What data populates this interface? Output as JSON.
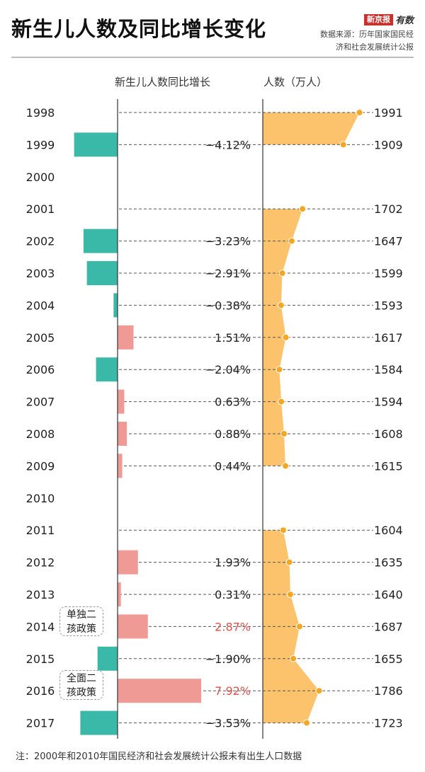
{
  "title": "新生儿人数及同比增长变化",
  "brand": {
    "box": "新京报",
    "text": "有数"
  },
  "source": {
    "line1": "数据来源：历年国家国民经",
    "line2": "济和社会发展统计公报"
  },
  "headers": {
    "growth": "新生儿人数同比增长",
    "count": "人数（万人）"
  },
  "annotations": [
    {
      "year": "2014",
      "line1": "单独二",
      "line2": "孩政策"
    },
    {
      "year": "2016",
      "line1": "全面二",
      "line2": "孩政策"
    }
  ],
  "footnote": "注：2000年和2010年国民经济和社会发展统计公报未有出生人口数据",
  "colors": {
    "negative": "#3ab8a8",
    "positive": "#ef9a94",
    "births": "#fcc36c",
    "births_point": "#f5a623",
    "highlight": "#d9534f"
  },
  "chart_data": [
    {
      "type": "bar",
      "name": "新生儿人数同比增长",
      "orientation": "horizontal",
      "unit": "%",
      "categories": [
        "1998",
        "1999",
        "2000",
        "2001",
        "2002",
        "2003",
        "2004",
        "2005",
        "2006",
        "2007",
        "2008",
        "2009",
        "2010",
        "2011",
        "2012",
        "2013",
        "2014",
        "2015",
        "2016",
        "2017"
      ],
      "values": [
        null,
        -4.12,
        null,
        null,
        -3.23,
        -2.91,
        -0.38,
        1.51,
        -2.04,
        0.63,
        0.88,
        0.44,
        null,
        null,
        1.93,
        0.31,
        2.87,
        -1.9,
        7.92,
        -3.53
      ],
      "labels": [
        "",
        "−4.12%",
        "",
        "",
        "−3.23%",
        "−2.91%",
        "−0.38%",
        "1.51%",
        "−2.04%",
        "0.63%",
        "0.88%",
        "0.44%",
        "",
        "",
        "1.93%",
        "0.31%",
        "2.87%",
        "−1.90%",
        "7.92%",
        "−3.53%"
      ],
      "highlight_years": [
        "2014",
        "2016"
      ]
    },
    {
      "type": "area",
      "name": "人数（万人）",
      "orientation": "vertical",
      "categories": [
        "1998",
        "1999",
        "2000",
        "2001",
        "2002",
        "2003",
        "2004",
        "2005",
        "2006",
        "2007",
        "2008",
        "2009",
        "2010",
        "2011",
        "2012",
        "2013",
        "2014",
        "2015",
        "2016",
        "2017"
      ],
      "values": [
        1991,
        1909,
        null,
        1702,
        1647,
        1599,
        1593,
        1617,
        1584,
        1594,
        1608,
        1615,
        null,
        1604,
        1635,
        1640,
        1687,
        1655,
        1786,
        1723
      ]
    }
  ]
}
